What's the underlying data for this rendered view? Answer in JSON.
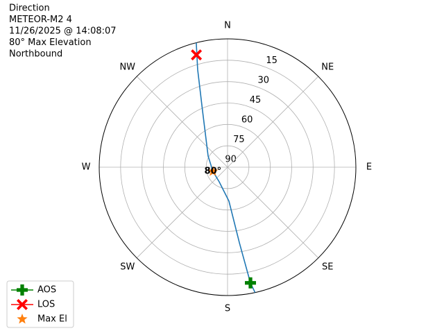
{
  "chart_data": {
    "type": "polar",
    "info_lines": [
      "Direction",
      "METEOR-M2 4",
      "11/26/2025 @ 14:08:07",
      "80° Max Elevation",
      "Northbound"
    ],
    "ylim": [
      90,
      0
    ],
    "yticks": [
      90,
      75,
      60,
      45,
      30,
      15
    ],
    "xticks": [
      {
        "value": 0,
        "label": "N"
      },
      {
        "value": 45,
        "label": "NE"
      },
      {
        "value": 90,
        "label": "E"
      },
      {
        "value": 135,
        "label": "SE"
      },
      {
        "value": 180,
        "label": "S"
      },
      {
        "value": 225,
        "label": "SW"
      },
      {
        "value": 270,
        "label": "W"
      },
      {
        "value": 315,
        "label": "NW"
      }
    ],
    "grid": true,
    "legend": "lower left",
    "track": {
      "color": "#1f77b4",
      "azimuth": [
        167.6,
        168.8,
        171.1,
        177.7,
        209.7,
        254,
        299.7,
        336,
        343,
        345.9
      ],
      "elevation": [
        0,
        7.3,
        36.3,
        66.2,
        78.2,
        79.3,
        74.3,
        46.9,
        18.3,
        0
      ]
    },
    "markers": [
      {
        "name": "AOS",
        "color": "#008000",
        "marker": "P",
        "azimuth": 168.8,
        "elevation": 7.3
      },
      {
        "name": "LOS",
        "color": "#ff0000",
        "marker": "X",
        "azimuth": 344.5,
        "elevation": 8.3
      },
      {
        "name": "Max El",
        "color": "#ff7f0e",
        "marker": "*",
        "azimuth": 254,
        "elevation": 79.3,
        "label": "80°"
      }
    ]
  }
}
